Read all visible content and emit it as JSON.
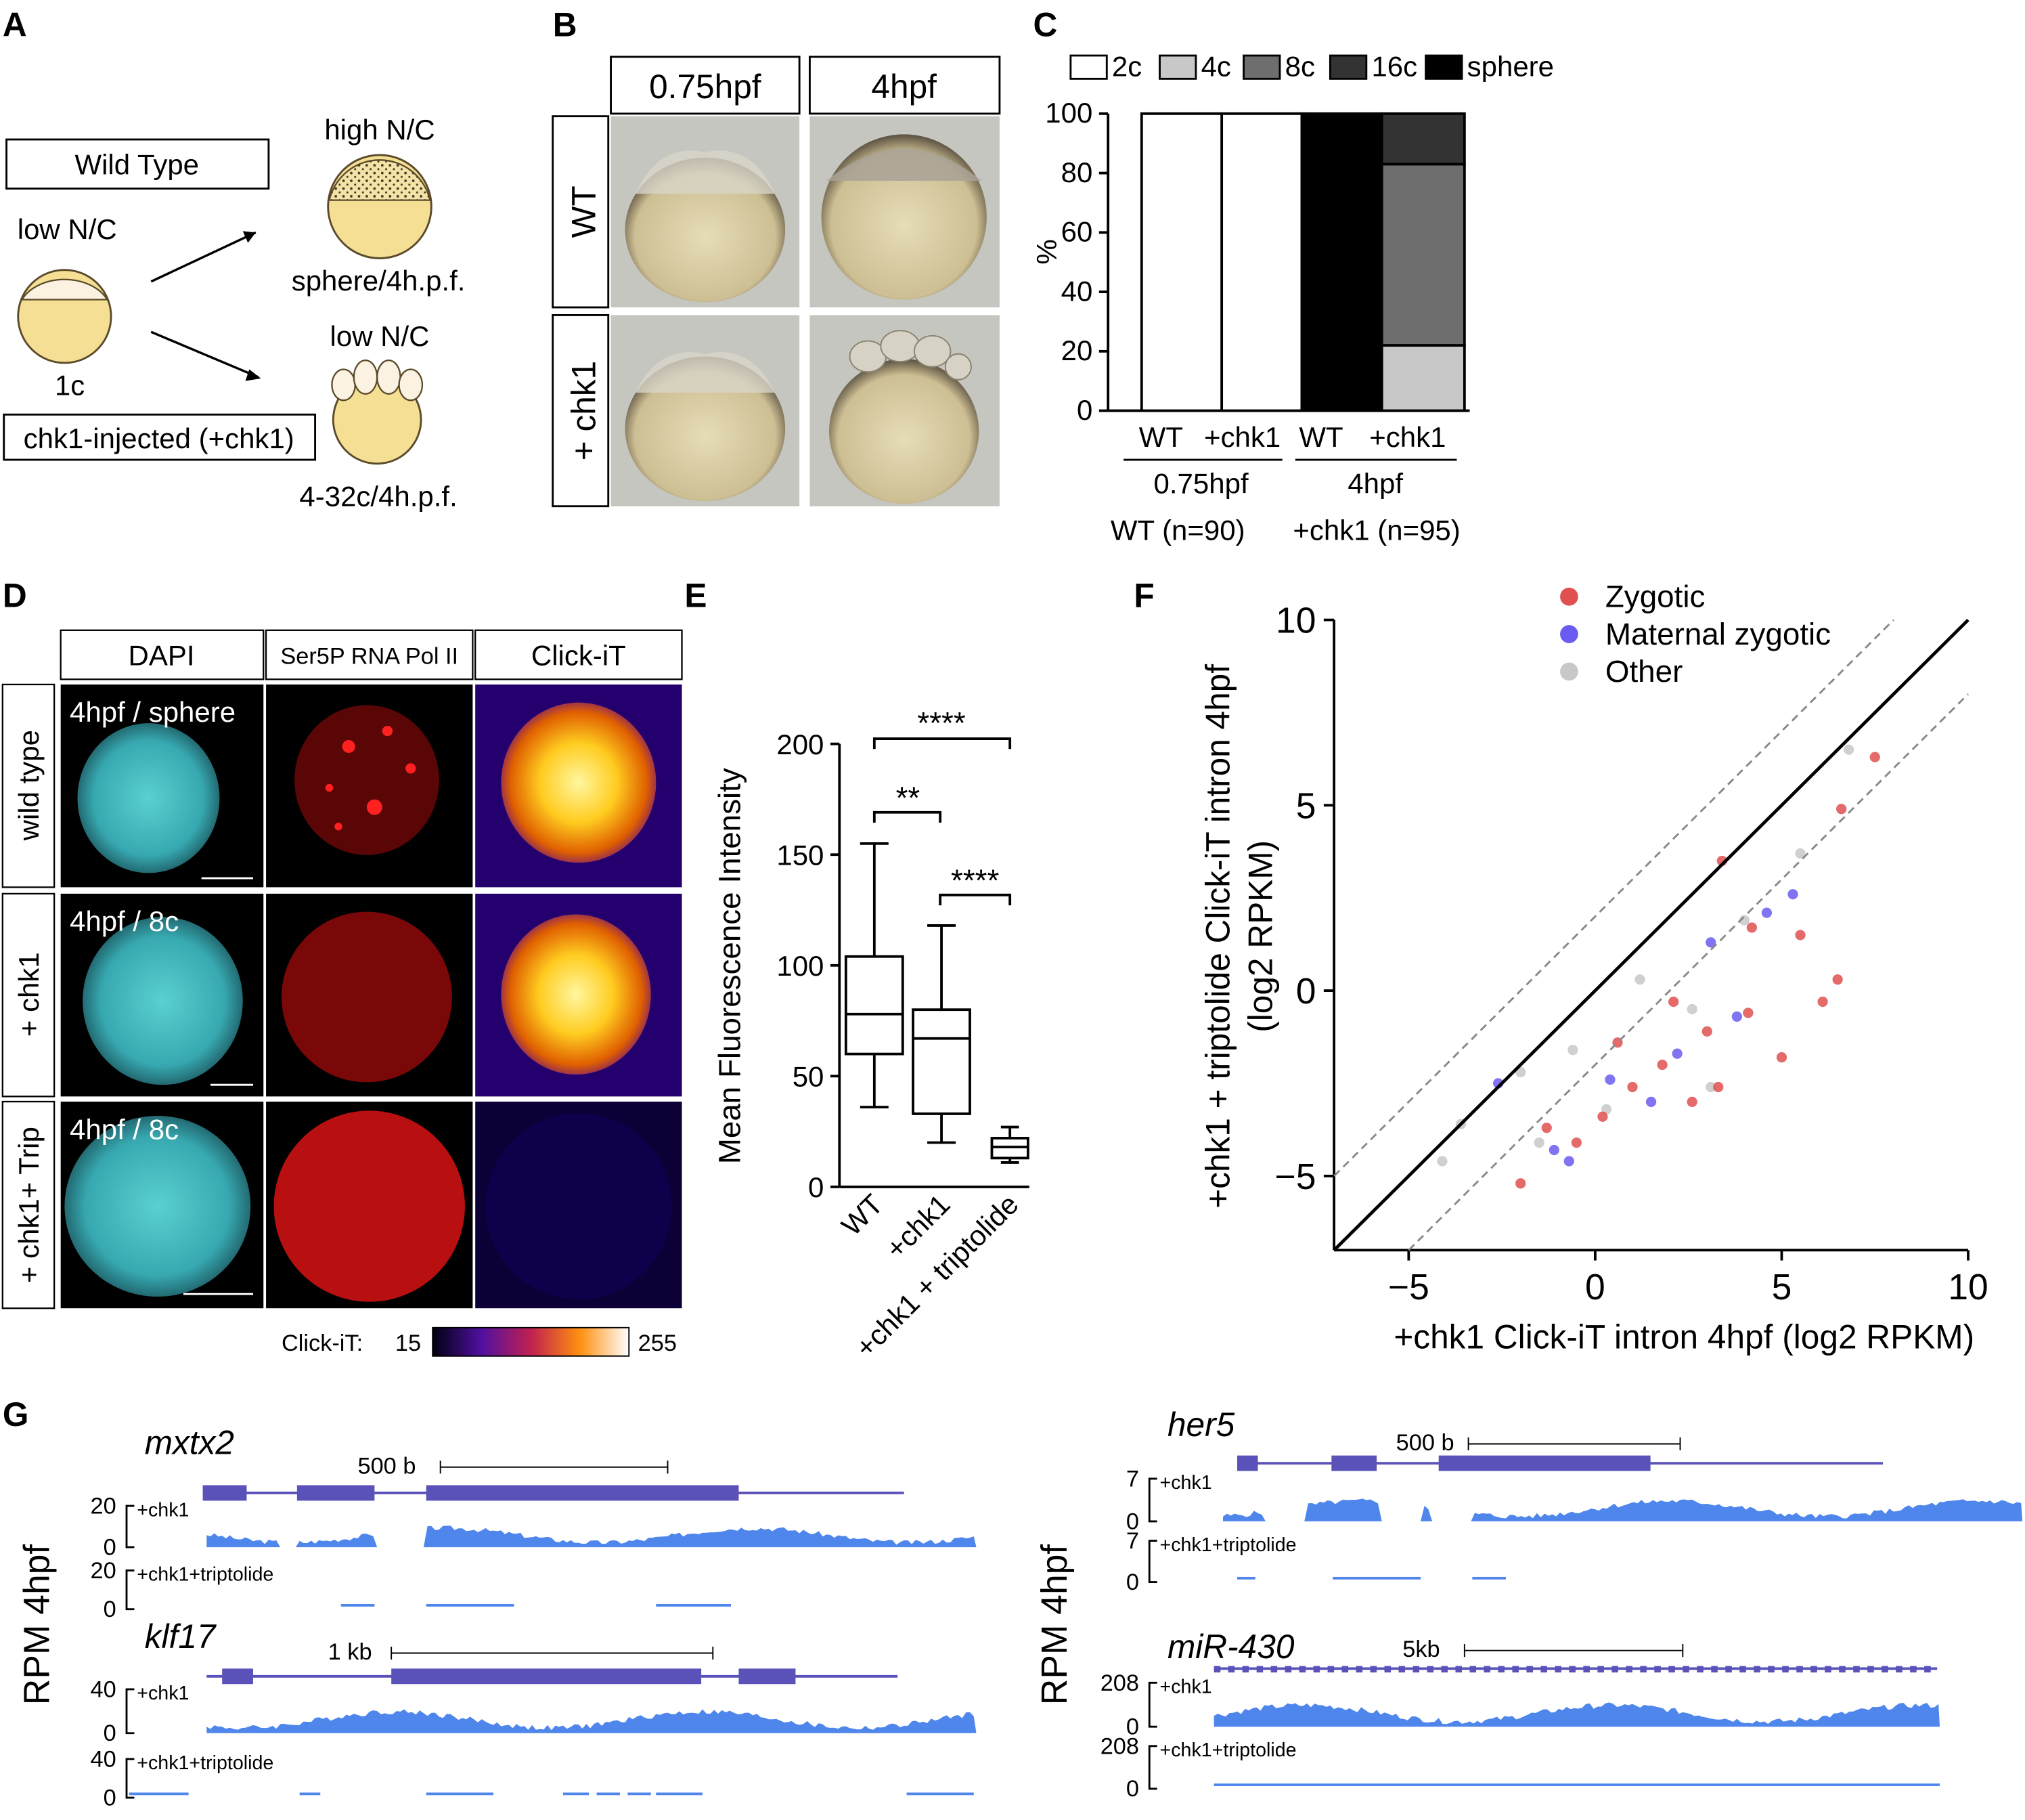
{
  "panels": {
    "A": {
      "letter": "A",
      "wild_type_label": "Wild Type",
      "chk1_label": "chk1-injected (+chk1)",
      "low_nc_left": "low N/C",
      "one_cell": "1c",
      "high_nc": "high N/C",
      "sphere_caption": "sphere/4h.p.f.",
      "low_nc_right": "low N/C",
      "cells_caption": "4-32c/4h.p.f."
    },
    "B": {
      "letter": "B",
      "col_headers": [
        "0.75hpf",
        "4hpf"
      ],
      "row_headers": [
        "WT",
        "+ chk1"
      ]
    },
    "C": {
      "letter": "C",
      "legend": [
        {
          "label": "2c",
          "color": "#ffffff"
        },
        {
          "label": "4c",
          "color": "#c8c8c8"
        },
        {
          "label": "8c",
          "color": "#6e6e6e"
        },
        {
          "label": "16c",
          "color": "#333333"
        },
        {
          "label": "sphere",
          "color": "#000000"
        }
      ],
      "ylabel": "%",
      "ticks": [
        "0",
        "20",
        "40",
        "60",
        "80",
        "100"
      ],
      "bar_labels": [
        "WT",
        "+chk1",
        "WT",
        "+chk1"
      ],
      "group_labels": [
        "0.75hpf",
        "4hpf"
      ],
      "n_labels": [
        "WT (n=90)",
        "+chk1 (n=95)"
      ]
    },
    "D": {
      "letter": "D",
      "col_headers": [
        "DAPI",
        "Ser5P RNA Pol II",
        "Click-iT"
      ],
      "row_headers": [
        "wild type",
        "+ chk1",
        "+ chk1+ Trip"
      ],
      "stage_labels": [
        "4hpf / sphere",
        "4hpf / 8c",
        "4hpf / 8c"
      ],
      "colorbar_label": "Click-iT:",
      "colorbar_min": "15",
      "colorbar_max": "255"
    },
    "E": {
      "letter": "E",
      "ylabel": "Mean Fluorescence Intensity",
      "ticks": [
        "0",
        "50",
        "100",
        "150",
        "200"
      ],
      "categories": [
        "WT",
        "+chk1",
        "+chk1 + triptolide"
      ],
      "sig": [
        "****",
        "**",
        "****"
      ]
    },
    "F": {
      "letter": "F",
      "xlabel": "+chk1 Click-iT intron 4hpf (log2 RPKM)",
      "ylabel_line1": "+chk1 + triptolide Click-iT intron 4hpf",
      "ylabel_line2": "(log2 RPKM)",
      "ticks_x": [
        "−5",
        "0",
        "5",
        "10"
      ],
      "ticks_y": [
        "−5",
        "0",
        "5",
        "10"
      ],
      "legend": [
        {
          "label": "Zygotic",
          "color": "#e05050"
        },
        {
          "label": "Maternal zygotic",
          "color": "#6a5cf0"
        },
        {
          "label": "Other",
          "color": "#c8c8c8"
        }
      ]
    },
    "G": {
      "letter": "G",
      "ylabel": "RPM 4hpf",
      "genes": [
        {
          "name": "mxtx2",
          "scale": "500 b",
          "ymax": "20",
          "ymin": "0",
          "track1": "+chk1",
          "track2": "+chk1+triptolide"
        },
        {
          "name": "klf17",
          "scale": "1 kb",
          "ymax": "40",
          "ymin": "0",
          "track1": "+chk1",
          "track2": "+chk1+triptolide"
        },
        {
          "name": "her5",
          "scale": "500 b",
          "ymax": "7",
          "ymin": "0",
          "track1": "+chk1",
          "track2": "+chk1+triptolide"
        },
        {
          "name": "miR-430",
          "scale": "5kb",
          "ymax": "208",
          "ymin": "0",
          "track1": "+chk1",
          "track2": "+chk1+triptolide"
        }
      ]
    }
  },
  "chart_data": [
    {
      "type": "bar",
      "stacked": true,
      "categories": [
        "WT 0.75hpf",
        "+chk1 0.75hpf",
        "WT 4hpf",
        "+chk1 4hpf"
      ],
      "series": [
        {
          "name": "2c",
          "values": [
            100,
            100,
            0,
            0
          ]
        },
        {
          "name": "4c",
          "values": [
            0,
            0,
            0,
            22
          ]
        },
        {
          "name": "8c",
          "values": [
            0,
            0,
            0,
            61
          ]
        },
        {
          "name": "16c",
          "values": [
            0,
            0,
            0,
            17
          ]
        },
        {
          "name": "sphere",
          "values": [
            0,
            0,
            100,
            0
          ]
        }
      ],
      "ylabel": "%",
      "ylim": [
        0,
        100
      ],
      "legend_position": "top"
    },
    {
      "type": "box",
      "categories": [
        "WT",
        "+chk1",
        "+chk1 + triptolide"
      ],
      "boxes": [
        {
          "min": 36,
          "q1": 60,
          "median": 78,
          "q3": 104,
          "max": 155
        },
        {
          "min": 20,
          "q1": 33,
          "median": 67,
          "q3": 80,
          "max": 118
        },
        {
          "min": 11,
          "q1": 13,
          "median": 18,
          "q3": 22,
          "max": 27
        }
      ],
      "ylabel": "Mean Fluorescence Intensity",
      "ylim": [
        0,
        200
      ]
    },
    {
      "type": "scatter",
      "xlabel": "+chk1 Click-iT intron 4hpf (log2 RPKM)",
      "ylabel": "+chk1 + triptolide Click-iT intron 4hpf (log2 RPKM)",
      "xlim": [
        -7,
        10
      ],
      "ylim": [
        -7,
        10
      ],
      "series": [
        {
          "name": "Zygotic",
          "points": [
            [
              7.5,
              6.3
            ],
            [
              6.6,
              4.9
            ],
            [
              4.2,
              1.7
            ],
            [
              6.5,
              0.3
            ],
            [
              3.4,
              3.5
            ],
            [
              2.1,
              -0.3
            ],
            [
              1.0,
              -2.6
            ],
            [
              0.2,
              -3.4
            ],
            [
              3.0,
              -1.1
            ],
            [
              5.0,
              -1.8
            ],
            [
              -0.5,
              -4.1
            ],
            [
              -2.0,
              -5.2
            ],
            [
              1.8,
              -2.0
            ],
            [
              5.5,
              1.5
            ],
            [
              6.1,
              -0.3
            ],
            [
              2.6,
              -3.0
            ],
            [
              -1.3,
              -3.7
            ],
            [
              4.1,
              -0.6
            ],
            [
              3.3,
              -2.6
            ],
            [
              0.6,
              -1.4
            ]
          ]
        },
        {
          "name": "Maternal zygotic",
          "points": [
            [
              5.3,
              2.6
            ],
            [
              4.6,
              2.1
            ],
            [
              3.1,
              1.3
            ],
            [
              0.4,
              -2.4
            ],
            [
              -0.7,
              -4.6
            ],
            [
              2.2,
              -1.7
            ],
            [
              1.5,
              -3.0
            ],
            [
              -2.6,
              -2.5
            ],
            [
              -1.1,
              -4.3
            ],
            [
              3.8,
              -0.7
            ]
          ]
        },
        {
          "name": "Other",
          "points": [
            [
              6.8,
              6.5
            ],
            [
              5.5,
              3.7
            ],
            [
              4.0,
              1.9
            ],
            [
              -2.0,
              -2.2
            ],
            [
              -3.6,
              -3.6
            ],
            [
              1.2,
              0.3
            ],
            [
              -0.6,
              -1.6
            ],
            [
              2.6,
              -0.5
            ],
            [
              -4.1,
              -4.6
            ],
            [
              0.3,
              -3.2
            ],
            [
              3.1,
              -2.6
            ],
            [
              -1.5,
              -4.1
            ]
          ]
        }
      ],
      "annotations": [
        "identity line y = x",
        "dashed lines at y = x ± 2"
      ],
      "legend_position": "top-right"
    }
  ]
}
